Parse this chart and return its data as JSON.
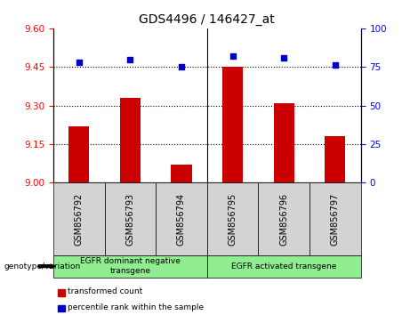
{
  "title": "GDS4496 / 146427_at",
  "samples": [
    "GSM856792",
    "GSM856793",
    "GSM856794",
    "GSM856795",
    "GSM856796",
    "GSM856797"
  ],
  "bar_values": [
    9.22,
    9.33,
    9.07,
    9.45,
    9.31,
    9.18
  ],
  "scatter_values": [
    78,
    80,
    75,
    82,
    81,
    76
  ],
  "ylim_left": [
    9.0,
    9.6
  ],
  "ylim_right": [
    0,
    100
  ],
  "yticks_left": [
    9.0,
    9.15,
    9.3,
    9.45,
    9.6
  ],
  "yticks_right": [
    0,
    25,
    50,
    75,
    100
  ],
  "hlines": [
    9.15,
    9.3,
    9.45
  ],
  "bar_color": "#cc0000",
  "scatter_color": "#0000cc",
  "bar_bottom": 9.0,
  "group_labels": [
    "EGFR dominant negative\ntransgene",
    "EGFR activated transgene"
  ],
  "group_ranges": [
    [
      0,
      2
    ],
    [
      3,
      5
    ]
  ],
  "group_color": "#90ee90",
  "sample_box_color": "#d3d3d3",
  "tick_label_fontsize": 7,
  "title_fontsize": 10,
  "legend_red_label": "transformed count",
  "legend_blue_label": "percentile rank within the sample",
  "genotype_label": "genotype/variation",
  "bar_width": 0.4
}
